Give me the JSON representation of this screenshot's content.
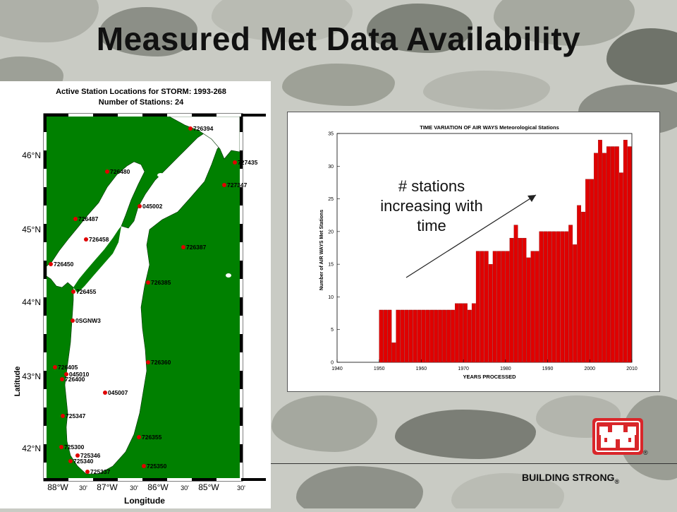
{
  "slide": {
    "title": "Measured Met Data Availability",
    "footer": "BUILDING STRONG",
    "footer_mark": "®",
    "annotation": [
      "# stations",
      "increasing with",
      "time"
    ]
  },
  "colors": {
    "water": "#ffffff",
    "land": "#008000",
    "station": "#e00000",
    "bar": "#e00000",
    "logo_red": "#d9262a"
  },
  "map": {
    "title_line1": "Active Station Locations for STORM: 1993-268",
    "title_line2": "Number of Stations:  24",
    "xlabel": "Longitude",
    "ylabel": "Latitude",
    "lat_ticks": [
      "46°N",
      "45°N",
      "44°N",
      "43°N",
      "42°N"
    ],
    "lon_ticks": [
      "88°W",
      "30'",
      "87°W",
      "30'",
      "86°W",
      "30'",
      "85°W",
      "30'"
    ],
    "stations": [
      {
        "id": "726394"
      },
      {
        "id": "727435"
      },
      {
        "id": "726480"
      },
      {
        "id": "727347"
      },
      {
        "id": "045002"
      },
      {
        "id": "726487"
      },
      {
        "id": "726458"
      },
      {
        "id": "726387"
      },
      {
        "id": "726450"
      },
      {
        "id": "726385"
      },
      {
        "id": "726455"
      },
      {
        "id": "0SGNW3"
      },
      {
        "id": "726405"
      },
      {
        "id": "045010"
      },
      {
        "id": "726400"
      },
      {
        "id": "726360"
      },
      {
        "id": "045007"
      },
      {
        "id": "725347"
      },
      {
        "id": "726355"
      },
      {
        "id": "725300"
      },
      {
        "id": "725346"
      },
      {
        "id": "725340"
      },
      {
        "id": "725350"
      },
      {
        "id": "725337"
      }
    ]
  },
  "chart_data": {
    "type": "bar",
    "title": "TIME VARIATION OF AIR WAYS Meteorological Stations",
    "xlabel": "YEARS PROCESSED",
    "ylabel": "Number of AIR WAYS Met Stations",
    "xlim": [
      1940,
      2010
    ],
    "ylim": [
      0,
      35
    ],
    "x_ticks": [
      1940,
      1950,
      1960,
      1970,
      1980,
      1990,
      2000,
      2010
    ],
    "y_ticks": [
      0,
      5,
      10,
      15,
      20,
      25,
      30,
      35
    ],
    "categories": [
      1950,
      1951,
      1952,
      1953,
      1954,
      1955,
      1956,
      1957,
      1958,
      1959,
      1960,
      1961,
      1962,
      1963,
      1964,
      1965,
      1966,
      1967,
      1968,
      1969,
      1970,
      1971,
      1972,
      1973,
      1974,
      1975,
      1976,
      1977,
      1978,
      1979,
      1980,
      1981,
      1982,
      1983,
      1984,
      1985,
      1986,
      1987,
      1988,
      1989,
      1990,
      1991,
      1992,
      1993,
      1994,
      1995,
      1996,
      1997,
      1998,
      1999,
      2000,
      2001,
      2002,
      2003,
      2004,
      2005,
      2006,
      2007,
      2008,
      2009
    ],
    "values": [
      8,
      8,
      8,
      3,
      8,
      8,
      8,
      8,
      8,
      8,
      8,
      8,
      8,
      8,
      8,
      8,
      8,
      8,
      9,
      9,
      9,
      8,
      9,
      17,
      17,
      17,
      15,
      17,
      17,
      17,
      17,
      19,
      21,
      19,
      19,
      16,
      17,
      17,
      20,
      20,
      20,
      20,
      20,
      20,
      20,
      21,
      18,
      24,
      23,
      28,
      28,
      32,
      34,
      32,
      33,
      33,
      33,
      29,
      34,
      33
    ]
  }
}
